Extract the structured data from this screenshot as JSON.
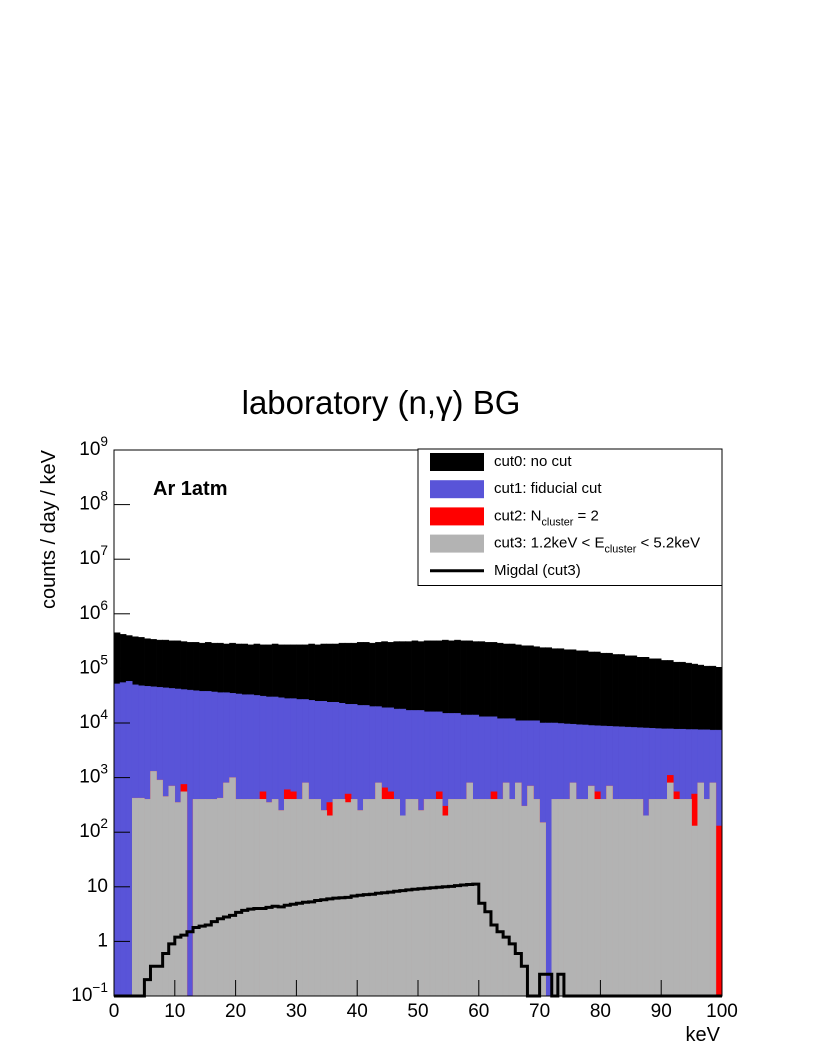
{
  "chart_data": {
    "type": "histogram",
    "title": "laboratory (n,γ) BG",
    "annotation": "Ar 1atm",
    "xlabel": "keV",
    "ylabel": "counts / day / keV",
    "ylog": true,
    "xlim": [
      0,
      100
    ],
    "ylim": [
      0.1,
      1000000000
    ],
    "xticks": [
      0,
      10,
      20,
      30,
      40,
      50,
      60,
      70,
      80,
      90,
      100
    ],
    "yticks": [
      {
        "value": 0.1,
        "label": "10^{−1}"
      },
      1,
      10,
      {
        "value": 100,
        "label": "10^{2}"
      },
      {
        "value": 1000,
        "label": "10^{3}"
      },
      {
        "value": 10000,
        "label": "10^{4}"
      },
      {
        "value": 100000,
        "label": "10^{5}"
      },
      {
        "value": 1000000,
        "label": "10^{6}"
      },
      {
        "value": 10000000,
        "label": "10^{7}"
      },
      {
        "value": 100000000,
        "label": "10^{8}"
      },
      {
        "value": 1000000000,
        "label": "10^{9}"
      }
    ],
    "legend": "top-right",
    "bins": [
      0,
      1,
      2,
      3,
      4,
      5,
      6,
      7,
      8,
      9,
      10,
      11,
      12,
      13,
      14,
      15,
      16,
      17,
      18,
      19,
      20,
      21,
      22,
      23,
      24,
      25,
      26,
      27,
      28,
      29,
      30,
      31,
      32,
      33,
      34,
      35,
      36,
      37,
      38,
      39,
      40,
      41,
      42,
      43,
      44,
      45,
      46,
      47,
      48,
      49,
      50,
      51,
      52,
      53,
      54,
      55,
      56,
      57,
      58,
      59,
      60,
      61,
      62,
      63,
      64,
      65,
      66,
      67,
      68,
      69,
      70,
      71,
      72,
      73,
      74,
      75,
      76,
      77,
      78,
      79,
      80,
      81,
      82,
      83,
      84,
      85,
      86,
      87,
      88,
      89,
      90,
      91,
      92,
      93,
      94,
      95,
      96,
      97,
      98,
      99,
      100
    ],
    "series": [
      {
        "name": "cut0: no cut",
        "color": "#000000",
        "style": "fill",
        "values": [
          450000,
          420000,
          400000,
          380000,
          370000,
          350000,
          340000,
          330000,
          330000,
          320000,
          320000,
          310000,
          300000,
          300000,
          290000,
          300000,
          290000,
          290000,
          280000,
          290000,
          280000,
          280000,
          270000,
          280000,
          270000,
          270000,
          280000,
          270000,
          270000,
          270000,
          270000,
          270000,
          280000,
          270000,
          280000,
          280000,
          280000,
          290000,
          290000,
          290000,
          300000,
          300000,
          290000,
          300000,
          310000,
          300000,
          310000,
          310000,
          310000,
          320000,
          310000,
          320000,
          320000,
          320000,
          330000,
          320000,
          330000,
          320000,
          320000,
          310000,
          310000,
          300000,
          300000,
          290000,
          280000,
          280000,
          270000,
          260000,
          260000,
          250000,
          240000,
          240000,
          230000,
          230000,
          220000,
          220000,
          210000,
          210000,
          200000,
          200000,
          190000,
          190000,
          180000,
          180000,
          170000,
          170000,
          160000,
          160000,
          150000,
          150000,
          140000,
          140000,
          130000,
          130000,
          125000,
          120000,
          115000,
          110000,
          110000,
          105000
        ]
      },
      {
        "name": "cut1: fiducial cut",
        "color": "#5954d8",
        "style": "fill",
        "values": [
          52000,
          55000,
          58000,
          50000,
          48000,
          47000,
          46000,
          45000,
          44000,
          43000,
          42000,
          41000,
          40000,
          39000,
          38000,
          38000,
          37000,
          36000,
          36000,
          35000,
          34000,
          33000,
          33000,
          32000,
          31000,
          30000,
          30000,
          29000,
          28000,
          28000,
          27000,
          27000,
          26000,
          25000,
          25000,
          24000,
          24000,
          23000,
          22000,
          22000,
          21000,
          21000,
          20000,
          20000,
          19000,
          19000,
          18000,
          18000,
          17000,
          17000,
          17000,
          16000,
          16000,
          16000,
          15000,
          15000,
          15000,
          14000,
          14000,
          14000,
          13000,
          13000,
          13000,
          12000,
          12000,
          12000,
          11000,
          11000,
          11000,
          11000,
          10000,
          10000,
          10000,
          9800,
          9600,
          9500,
          9300,
          9200,
          9000,
          8900,
          8800,
          8700,
          8600,
          8500,
          8400,
          8300,
          8200,
          8100,
          8000,
          7900,
          7800,
          7800,
          7700,
          7700,
          7600,
          7600,
          7500,
          7500,
          7400,
          7400
        ]
      },
      {
        "name": "cut2: N_{cluster} = 2",
        "color": "#ff0000",
        "style": "fill",
        "values": [
          0,
          0,
          0,
          420,
          420,
          400,
          1300,
          900,
          450,
          700,
          350,
          750,
          0,
          400,
          400,
          400,
          400,
          420,
          800,
          1000,
          400,
          400,
          400,
          400,
          550,
          350,
          400,
          250,
          600,
          550,
          400,
          800,
          400,
          400,
          250,
          350,
          400,
          400,
          500,
          400,
          250,
          400,
          400,
          800,
          650,
          550,
          400,
          200,
          400,
          400,
          250,
          400,
          400,
          550,
          300,
          400,
          400,
          400,
          800,
          400,
          400,
          400,
          550,
          400,
          800,
          400,
          800,
          300,
          700,
          400,
          150,
          0,
          400,
          400,
          400,
          800,
          400,
          400,
          700,
          550,
          400,
          700,
          400,
          400,
          400,
          400,
          400,
          200,
          400,
          400,
          400,
          1100,
          550,
          400,
          400,
          500,
          800,
          400,
          800,
          130
        ]
      },
      {
        "name": "cut3: 1.2keV < E_{cluster} < 5.2keV",
        "color": "#b3b3b3",
        "style": "fill",
        "values": [
          0,
          0,
          0,
          420,
          420,
          400,
          1300,
          900,
          450,
          700,
          350,
          550,
          0,
          400,
          400,
          400,
          400,
          420,
          800,
          1000,
          400,
          400,
          400,
          400,
          400,
          350,
          400,
          250,
          400,
          400,
          400,
          800,
          400,
          400,
          250,
          200,
          400,
          400,
          350,
          400,
          250,
          400,
          400,
          800,
          400,
          400,
          400,
          200,
          400,
          400,
          250,
          400,
          400,
          400,
          200,
          400,
          400,
          400,
          800,
          400,
          400,
          400,
          400,
          400,
          800,
          400,
          800,
          300,
          700,
          400,
          150,
          0,
          400,
          400,
          400,
          800,
          400,
          400,
          700,
          400,
          400,
          700,
          400,
          400,
          400,
          400,
          400,
          200,
          400,
          400,
          400,
          800,
          400,
          400,
          400,
          130,
          800,
          400,
          800,
          0
        ]
      },
      {
        "name": "Migdal (cut3)",
        "color": "#000000",
        "style": "step",
        "values": [
          0,
          0,
          0,
          0,
          0,
          0.2,
          0.35,
          0.35,
          0.6,
          0.9,
          1.2,
          1.3,
          1.5,
          1.8,
          1.9,
          2.0,
          2.3,
          2.6,
          2.8,
          3.0,
          3.4,
          3.7,
          3.9,
          4.0,
          4.0,
          4.2,
          4.4,
          4.3,
          4.6,
          4.8,
          5.0,
          5.2,
          5.3,
          5.6,
          5.8,
          6.0,
          6.2,
          6.3,
          6.4,
          6.8,
          7.0,
          7.2,
          7.3,
          7.6,
          7.8,
          8.0,
          8.3,
          8.5,
          8.8,
          9.0,
          9.2,
          9.4,
          9.6,
          9.8,
          10,
          10.2,
          10.5,
          10.8,
          11,
          11.2,
          5,
          3.5,
          2,
          1.5,
          1.2,
          0.9,
          0.6,
          0.35,
          0,
          0,
          0.25,
          0.25,
          0,
          0.25,
          0,
          0,
          0,
          0,
          0,
          0,
          0,
          0,
          0,
          0,
          0,
          0,
          0,
          0,
          0,
          0,
          0,
          0,
          0,
          0,
          0,
          0,
          0,
          0,
          0,
          0
        ]
      }
    ]
  }
}
